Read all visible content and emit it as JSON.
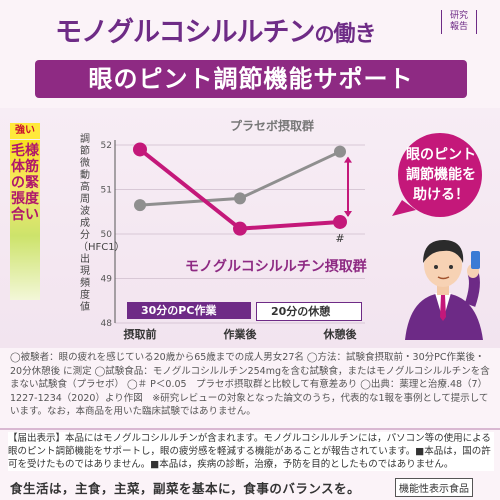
{
  "header": {
    "title_main": "モノグルコシルルチン",
    "title_no": "の",
    "title_end": "働き",
    "tag": "研究報告"
  },
  "banner": {
    "text": "眼のピント調節機能サポート"
  },
  "y_side": {
    "badge": "強い",
    "main_label": "毛様体筋の緊張度合い",
    "unit_label": "調節微動高周波成分（HFC1）出現頻度値"
  },
  "callout": {
    "text": "眼のピント調節機能を助ける！"
  },
  "phases": {
    "pc": "30分のPC作業",
    "rest": "20分の休憩"
  },
  "notes": "◯被験者：眼の疲れを感じている20歳から65歳までの成人男女27名 ◯方法：試験食摂取前・30分PC作業後・20分休憩後 に測定 ◯試験食品：モノグルコシルルチン254mgを含む試験食，またはモノグルコシルルチンを含まない試験食（プラセボ） ◯＃ P＜0.05　プラセボ摂取群と比較して有意差あり ◯出典：薬理と治療.48（7）1227-1234（2020）より作図　※研究レビューの対象となった論文のうち，代表的な1報を事例として提示しています。なお，本商品を用いた臨床試験ではありません。",
  "disclosure": "【届出表示】本品にはモノグルコシルルチンが含まれます。モノグルコシルルチンには，パソコン等の使用による眼のピント調節機能をサポートし，眼の疲労感を軽減する機能があることが報告されています。■本品は，国の許可を受けたものではありません。■本品は，疾病の診断，治療，予防を目的としたものではありません。",
  "footer": {
    "text": "食生活は，主食，主菜，副菜を基本に，食事のバランスを。",
    "badge": "機能性表示食品"
  },
  "chart_data": {
    "type": "line",
    "categories": [
      "摂取前",
      "作業後",
      "休憩後"
    ],
    "ylim": [
      48,
      52
    ],
    "yticks": [
      48,
      49,
      50,
      51,
      52
    ],
    "series": [
      {
        "name": "プラセボ摂取群",
        "values": [
          50.65,
          50.8,
          51.85
        ],
        "color": "#8f8f8f"
      },
      {
        "name": "モノグルコシルルチン摂取群",
        "values": [
          51.9,
          50.12,
          50.27
        ],
        "color": "#c4187a"
      }
    ],
    "annotations": [
      "#"
    ]
  }
}
